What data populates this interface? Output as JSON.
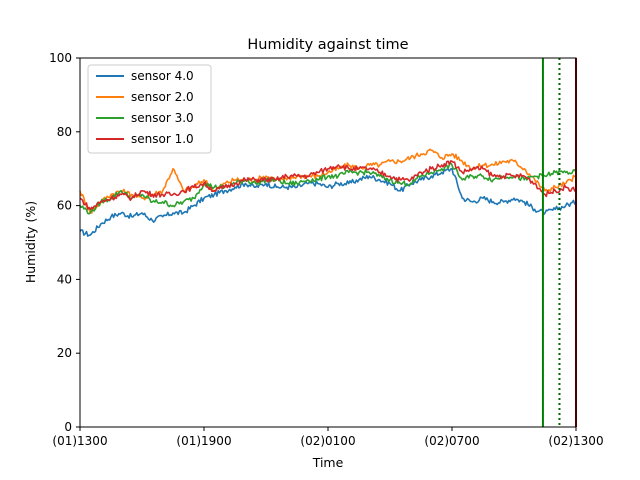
{
  "chart_data": {
    "type": "line",
    "title": "Humidity against  time",
    "xlabel": "Time",
    "ylabel": "Humidity (%)",
    "xlim": [
      0,
      24
    ],
    "ylim": [
      0,
      100
    ],
    "x_ticks": [
      {
        "value": 0,
        "label": "(01)1300"
      },
      {
        "value": 6,
        "label": "(01)1900"
      },
      {
        "value": 12,
        "label": "(02)0100"
      },
      {
        "value": 18,
        "label": "(02)0700"
      },
      {
        "value": 24,
        "label": "(02)1300"
      }
    ],
    "y_ticks": [
      0,
      20,
      40,
      60,
      80,
      100
    ],
    "grid": false,
    "legend_position": "top-left",
    "x_hours": [
      0,
      0.5,
      1,
      1.5,
      2,
      2.5,
      3,
      3.5,
      4,
      4.5,
      5,
      5.5,
      6,
      6.5,
      7,
      7.5,
      8,
      8.5,
      9,
      9.5,
      10,
      10.5,
      11,
      11.5,
      12,
      12.5,
      13,
      13.5,
      14,
      14.5,
      15,
      15.5,
      16,
      16.5,
      17,
      17.5,
      18,
      18.5,
      19,
      19.5,
      20,
      20.5,
      21,
      21.5,
      22,
      22.5,
      23,
      23.5,
      24
    ],
    "series": [
      {
        "name": "sensor 4.0",
        "color": "#1f77b4",
        "values": [
          53,
          52,
          55,
          57,
          58,
          57,
          58,
          56,
          57,
          58,
          58,
          60,
          62,
          63,
          64,
          65,
          66,
          65,
          66,
          65,
          65,
          65,
          66,
          66,
          65,
          66,
          66,
          67,
          68,
          67,
          66,
          64,
          66,
          67,
          68,
          69,
          70,
          62,
          61,
          62,
          61,
          61,
          62,
          61,
          59,
          58,
          59,
          60,
          61
        ]
      },
      {
        "name": "sensor 2.0",
        "color": "#ff7f0e",
        "values": [
          64,
          58,
          61,
          63,
          64,
          63,
          62,
          63,
          64,
          70,
          64,
          65,
          67,
          64,
          66,
          67,
          67,
          67,
          68,
          67,
          67,
          68,
          68,
          68,
          69,
          70,
          71,
          70,
          71,
          71,
          72,
          72,
          73,
          74,
          75,
          73,
          74,
          72,
          70,
          71,
          71,
          72,
          72,
          70,
          67,
          64,
          65,
          66,
          68
        ]
      },
      {
        "name": "sensor 3.0",
        "color": "#2ca02c",
        "values": [
          60,
          58,
          61,
          62,
          64,
          62,
          63,
          61,
          61,
          60,
          61,
          62,
          66,
          65,
          65,
          66,
          67,
          66,
          67,
          67,
          66,
          66,
          67,
          67,
          68,
          68,
          69,
          69,
          69,
          68,
          67,
          66,
          66,
          68,
          69,
          70,
          71,
          67,
          68,
          68,
          67,
          68,
          68,
          67,
          68,
          68,
          69,
          69,
          69
        ]
      },
      {
        "name": "sensor 1.0",
        "color": "#d62728",
        "values": [
          62,
          59,
          61,
          62,
          63,
          62,
          64,
          63,
          63,
          63,
          64,
          65,
          66,
          64,
          65,
          66,
          67,
          67,
          67,
          67,
          68,
          68,
          68,
          69,
          70,
          71,
          70,
          70,
          70,
          69,
          68,
          67,
          67,
          69,
          70,
          71,
          72,
          69,
          70,
          70,
          68,
          68,
          68,
          68,
          66,
          63,
          64,
          65,
          64
        ]
      }
    ],
    "vertical_lines": [
      {
        "x": 22.4,
        "color": "#008000",
        "style": "solid"
      },
      {
        "x": 23.2,
        "color": "#006400",
        "style": "dotted"
      },
      {
        "x": 24.0,
        "color": "#8b0000",
        "style": "solid"
      }
    ]
  }
}
